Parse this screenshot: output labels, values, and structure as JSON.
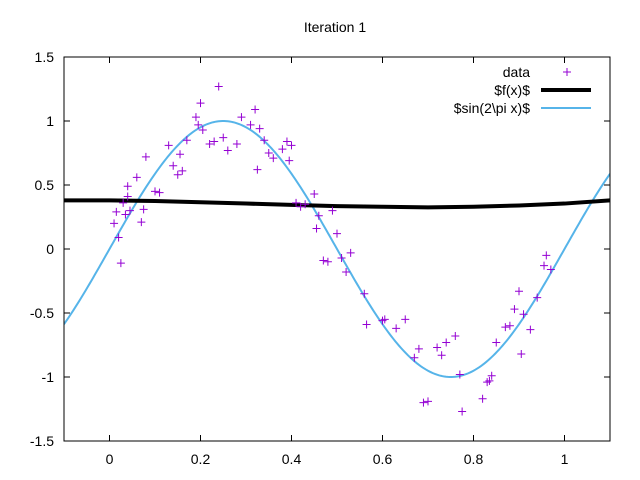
{
  "chart_data": {
    "type": "scatter",
    "title": "Iteration 1",
    "xlabel": "",
    "ylabel": "",
    "xlim": [
      -0.1,
      1.1
    ],
    "ylim": [
      -1.5,
      1.5
    ],
    "x_ticks": [
      "0",
      "0.2",
      "0.4",
      "0.6",
      "0.8",
      "1"
    ],
    "y_ticks": [
      "1.5",
      "1",
      "0.5",
      "0",
      "-0.5",
      "-1",
      "-1.5"
    ],
    "grid": false,
    "legend_position": "top-right",
    "series": [
      {
        "name": "data",
        "style": "points",
        "marker": "plus",
        "color": "#9400d3",
        "x": [
          0.01,
          0.015,
          0.02,
          0.025,
          0.03,
          0.035,
          0.04,
          0.04,
          0.045,
          0.06,
          0.07,
          0.075,
          0.08,
          0.1,
          0.11,
          0.13,
          0.14,
          0.15,
          0.155,
          0.16,
          0.17,
          0.19,
          0.195,
          0.2,
          0.205,
          0.22,
          0.23,
          0.24,
          0.25,
          0.26,
          0.28,
          0.29,
          0.31,
          0.32,
          0.325,
          0.33,
          0.34,
          0.35,
          0.36,
          0.38,
          0.39,
          0.395,
          0.4,
          0.41,
          0.42,
          0.43,
          0.45,
          0.455,
          0.46,
          0.47,
          0.48,
          0.49,
          0.5,
          0.51,
          0.52,
          0.53,
          0.56,
          0.565,
          0.6,
          0.605,
          0.63,
          0.65,
          0.67,
          0.68,
          0.69,
          0.7,
          0.72,
          0.73,
          0.74,
          0.76,
          0.77,
          0.775,
          0.82,
          0.83,
          0.835,
          0.84,
          0.85,
          0.87,
          0.88,
          0.89,
          0.9,
          0.905,
          0.91,
          0.925,
          0.94,
          0.955,
          0.96,
          0.97
        ],
        "y": [
          0.2,
          0.29,
          0.09,
          -0.11,
          0.36,
          0.27,
          0.41,
          0.49,
          0.3,
          0.56,
          0.21,
          0.31,
          0.72,
          0.45,
          0.44,
          0.81,
          0.65,
          0.58,
          0.74,
          0.61,
          0.85,
          1.03,
          0.97,
          1.14,
          0.93,
          0.82,
          0.84,
          1.27,
          0.87,
          0.77,
          0.82,
          1.03,
          0.97,
          1.09,
          0.62,
          0.94,
          0.85,
          0.75,
          0.71,
          0.78,
          0.84,
          0.69,
          0.81,
          0.36,
          0.33,
          0.35,
          0.43,
          0.16,
          0.26,
          -0.09,
          -0.1,
          0.3,
          0.12,
          -0.07,
          -0.18,
          -0.03,
          -0.35,
          -0.59,
          -0.56,
          -0.55,
          -0.62,
          -0.55,
          -0.85,
          -0.78,
          -1.2,
          -1.19,
          -0.77,
          -0.83,
          -0.73,
          -0.68,
          -0.98,
          -1.27,
          -1.17,
          -1.04,
          -1.03,
          -0.99,
          -0.73,
          -0.61,
          -0.6,
          -0.47,
          -0.33,
          -0.82,
          -0.51,
          -0.63,
          -0.38,
          -0.13,
          -0.05,
          -0.16
        ]
      },
      {
        "name": "$f(x)$",
        "style": "line",
        "color": "#000000",
        "x": [
          -0.1,
          0.0,
          0.1,
          0.2,
          0.3,
          0.4,
          0.5,
          0.6,
          0.7,
          0.8,
          0.9,
          1.0,
          1.1
        ],
        "y": [
          0.38,
          0.38,
          0.375,
          0.365,
          0.355,
          0.345,
          0.335,
          0.33,
          0.325,
          0.33,
          0.34,
          0.355,
          0.38
        ]
      },
      {
        "name": "$sin(2\\pi x)$",
        "style": "line",
        "color": "#56b4e9",
        "function": "sin(2*pi*x)"
      }
    ]
  }
}
